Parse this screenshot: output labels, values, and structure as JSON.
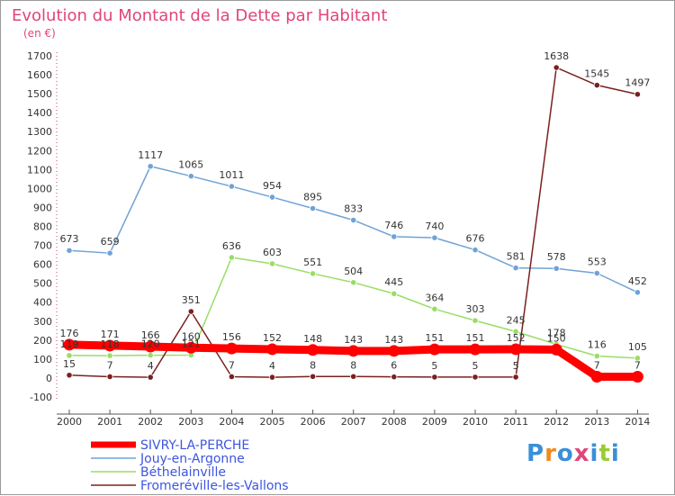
{
  "chart_data": {
    "type": "line",
    "title": "Evolution du Montant de la Dette par Habitant",
    "subtitle": "(en €)",
    "x": [
      "2000",
      "2001",
      "2002",
      "2003",
      "2004",
      "2005",
      "2006",
      "2007",
      "2008",
      "2009",
      "2010",
      "2011",
      "2012",
      "2013",
      "2014"
    ],
    "y_ticks": [
      "-100",
      "0",
      "100",
      "200",
      "300",
      "400",
      "500",
      "600",
      "700",
      "800",
      "900",
      "1000",
      "1100",
      "1200",
      "1300",
      "1400",
      "1500",
      "1600",
      "1700"
    ],
    "ylim": [
      -100,
      1700
    ],
    "grid": false,
    "legend_position": "bottom-left",
    "series": [
      {
        "name": "SIVRY-LA-PERCHE",
        "color": "#ff0000",
        "values": [
          176,
          171,
          166,
          160,
          156,
          152,
          148,
          143,
          143,
          151,
          151,
          152,
          150,
          7,
          7
        ],
        "labels": [
          "176",
          "171",
          "166",
          "160",
          "156",
          "152",
          "148",
          "143",
          "143",
          "151",
          "151",
          "152",
          "150",
          "7",
          "7"
        ]
      },
      {
        "name": "Jouy-en-Argonne",
        "color": "#6fa3d6",
        "values": [
          673,
          659,
          1117,
          1065,
          1011,
          954,
          895,
          833,
          746,
          740,
          676,
          581,
          578,
          553,
          452
        ],
        "labels": [
          "673",
          "659",
          "1117",
          "1065",
          "1011",
          "954",
          "895",
          "833",
          "746",
          "740",
          "676",
          "581",
          "578",
          "553",
          "452"
        ]
      },
      {
        "name": "Béthelainville",
        "color": "#99dd66",
        "values": [
          119,
          118,
          120,
          121,
          636,
          603,
          551,
          504,
          445,
          364,
          303,
          245,
          178,
          116,
          105
        ],
        "labels": [
          "119",
          "118",
          "120",
          "121",
          "636",
          "603",
          "551",
          "504",
          "445",
          "364",
          "303",
          "245",
          "178",
          "116",
          "105"
        ]
      },
      {
        "name": "Fromeréville-les-Vallons",
        "color": "#7a2020",
        "values": [
          15,
          7,
          4,
          351,
          7,
          4,
          8,
          8,
          6,
          5,
          5,
          5,
          1638,
          1545,
          1497
        ],
        "labels": [
          "15",
          "7",
          "4",
          "351",
          "7",
          "4",
          "8",
          "8",
          "6",
          "5",
          "5",
          "5",
          "1638",
          "1545",
          "1497"
        ]
      }
    ]
  },
  "logo": {
    "letters": [
      "P",
      "r",
      "o",
      "x",
      "i",
      "t",
      "i"
    ],
    "colors": [
      "#3a8fd8",
      "#f08a1c",
      "#3a8fd8",
      "#e0457b",
      "#3a8fd8",
      "#99cc33",
      "#3a8fd8"
    ]
  }
}
